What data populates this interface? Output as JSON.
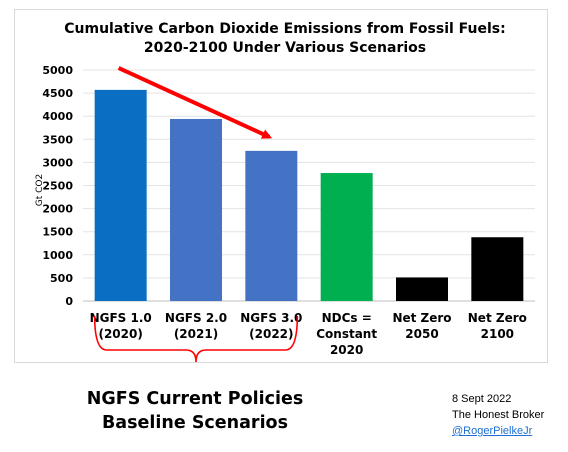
{
  "chart_data": {
    "type": "bar",
    "title_lines": [
      "Cumulative Carbon Dioxide Emissions from Fossil Fuels:",
      "2020-2100 Under Various Scenarios"
    ],
    "ylabel": "Gt CO2",
    "ylim": [
      0,
      5000
    ],
    "yticks": [
      "0",
      "500",
      "1000",
      "1500",
      "2000",
      "2500",
      "3000",
      "3500",
      "4000",
      "4500",
      "5000"
    ],
    "grid": true,
    "categories": [
      [
        "NGFS 1.0",
        "(2020)"
      ],
      [
        "NGFS 2.0",
        "(2021)"
      ],
      [
        "NGFS 3.0",
        "(2022)"
      ],
      [
        "NDCs =",
        "Constant",
        "2020"
      ],
      [
        "Net Zero",
        "2050"
      ],
      [
        "Net Zero",
        "2100"
      ]
    ],
    "values": [
      4570,
      3940,
      3250,
      2770,
      510,
      1380
    ],
    "colors": [
      "#0a6fc2",
      "#4472c4",
      "#4472c4",
      "#00b050",
      "#000000",
      "#000000"
    ],
    "annotation_arrow_color": "#ff0000",
    "bracket_color": "#ff0000"
  },
  "caption_lines": [
    "NGFS Current Policies",
    "Baseline Scenarios"
  ],
  "notes": {
    "date": "8 Sept 2022",
    "publisher": "The Honest Broker",
    "handle": "@RogerPielkeJr"
  }
}
